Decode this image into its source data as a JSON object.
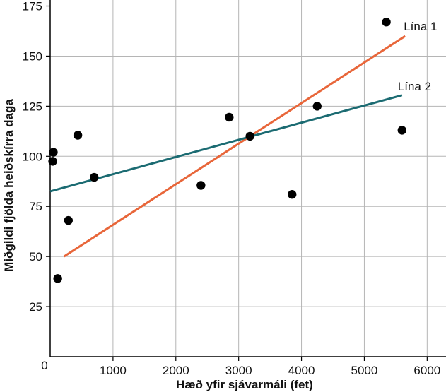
{
  "chart_data": {
    "type": "scatter",
    "title": "",
    "xlabel": "Hæð yfir sjávarmáli (fet)",
    "ylabel": "Miðgildi fjölda heiðskírra daga",
    "xlim": [
      0,
      6300
    ],
    "ylim": [
      0,
      178
    ],
    "x_ticks": [
      1000,
      2000,
      3000,
      4000,
      5000,
      6000
    ],
    "y_ticks": [
      25,
      50,
      75,
      100,
      125,
      150,
      175
    ],
    "origin_label": "0",
    "grid": true,
    "points": [
      {
        "x": 50,
        "y": 102
      },
      {
        "x": 40,
        "y": 97.5
      },
      {
        "x": 120,
        "y": 39
      },
      {
        "x": 290,
        "y": 68
      },
      {
        "x": 440,
        "y": 110.5
      },
      {
        "x": 700,
        "y": 89.5
      },
      {
        "x": 2400,
        "y": 85.5
      },
      {
        "x": 2850,
        "y": 119.5
      },
      {
        "x": 3180,
        "y": 110
      },
      {
        "x": 3850,
        "y": 81
      },
      {
        "x": 4250,
        "y": 125
      },
      {
        "x": 5350,
        "y": 167
      },
      {
        "x": 5600,
        "y": 113
      }
    ],
    "lines": [
      {
        "name": "Lína 1",
        "color": "#e8663a",
        "x1": 220,
        "y1": 50,
        "x2": 5650,
        "y2": 160
      },
      {
        "name": "Lína 2",
        "color": "#1b6b72",
        "x1": 0,
        "y1": 82.5,
        "x2": 5600,
        "y2": 130.5
      }
    ],
    "point_color": "#000000"
  }
}
